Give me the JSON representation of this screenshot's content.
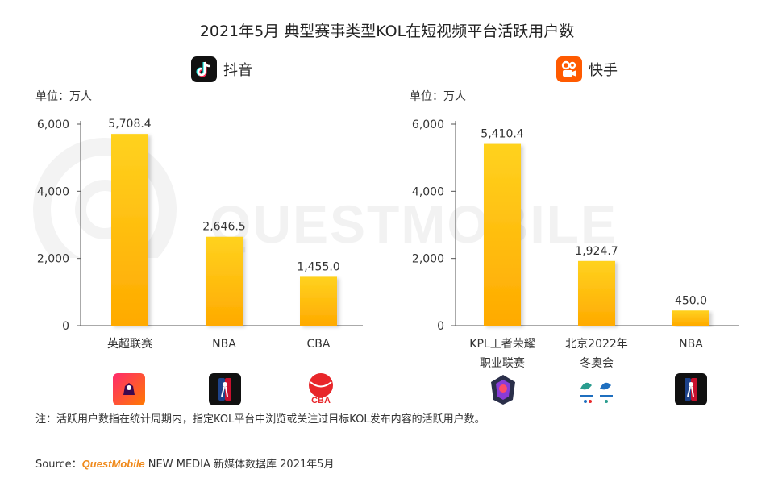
{
  "title": "2021年5月 典型赛事类型KOL在短视频平台活跃用户数",
  "colors": {
    "bar_top": "#ffd21f",
    "bar_bottom": "#ffaa00",
    "axis": "#555555",
    "brand": "#f08a1c"
  },
  "watermark": "QUESTMOBILE",
  "panels": {
    "douyin": {
      "name": "抖音",
      "icon": "douyin-icon",
      "unit": "单位：万人"
    },
    "kuaishou": {
      "name": "快手",
      "icon": "kuaishou-icon",
      "unit": "单位：万人"
    }
  },
  "chart_data": [
    {
      "type": "bar",
      "title": "抖音",
      "categories": [
        "英超联赛",
        "NBA",
        "CBA"
      ],
      "values": [
        5708.4,
        2646.5,
        1455.0
      ],
      "value_labels": [
        "5,708.4",
        "2,646.5",
        "1,455.0"
      ],
      "yticks": [
        0,
        2000,
        4000,
        6000
      ],
      "ytick_labels": [
        "0",
        "2,000",
        "4,000",
        "6,000"
      ],
      "ylim": [
        0,
        6000
      ],
      "ylabel": "单位：万人",
      "logos": [
        "premier-league-logo",
        "nba-logo",
        "cba-logo"
      ]
    },
    {
      "type": "bar",
      "title": "快手",
      "categories": [
        "KPL王者荣耀\n职业联赛",
        "北京2022年\n冬奥会",
        "NBA"
      ],
      "values": [
        5410.4,
        1924.7,
        450.0
      ],
      "value_labels": [
        "5,410.4",
        "1,924.7",
        "450.0"
      ],
      "yticks": [
        0,
        2000,
        4000,
        6000
      ],
      "ytick_labels": [
        "0",
        "2,000",
        "4,000",
        "6,000"
      ],
      "ylim": [
        0,
        6000
      ],
      "ylabel": "单位：万人",
      "logos": [
        "kpl-logo",
        "beijing-2022-logo",
        "nba-logo"
      ]
    }
  ],
  "note": "注：活跃用户数指在统计周期内，指定KOL平台中浏览或关注过目标KOL发布内容的活跃用户数。",
  "source": {
    "prefix": "Source：",
    "brand": "QuestMobile",
    "rest": " NEW MEDIA 新媒体数据库 2021年5月"
  }
}
